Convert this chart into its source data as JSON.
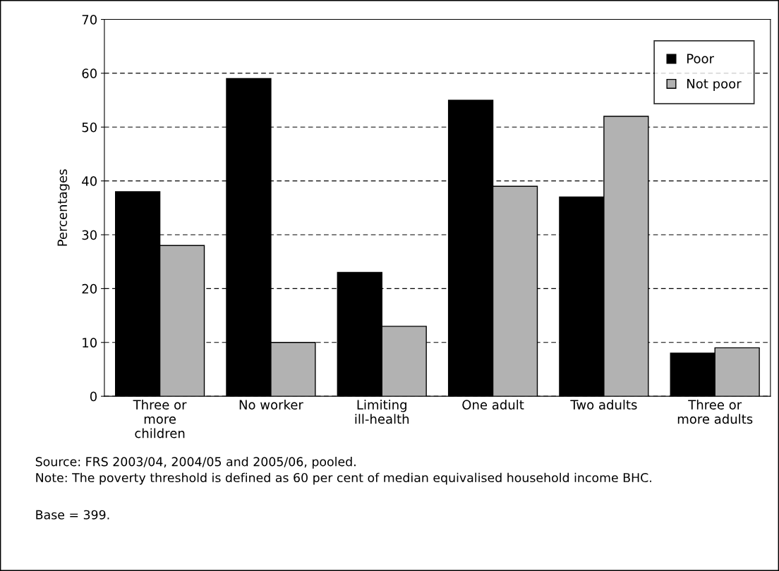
{
  "chart_data": {
    "type": "bar",
    "ylabel": "Percentages",
    "categories": [
      "Three or\nmore\nchildren",
      "No worker",
      "Limiting\nill-health",
      "One adult",
      "Two adults",
      "Three or\nmore adults"
    ],
    "series": [
      {
        "name": "Poor",
        "color": "#000000",
        "values": [
          38,
          59,
          23,
          55,
          37,
          8
        ]
      },
      {
        "name": "Not poor",
        "color": "#b2b2b2",
        "values": [
          28,
          10,
          13,
          39,
          52,
          9
        ]
      }
    ],
    "ylim": [
      0,
      70
    ],
    "yticks": [
      0,
      10,
      20,
      30,
      40,
      50,
      60,
      70
    ],
    "grid": "y",
    "legend": "top right",
    "annotations": [
      "Source: FRS 2003/04, 2004/05 and 2005/06, pooled.",
      "Note: The poverty threshold is defined as 60 per cent of median equivalised household income BHC.",
      "Base = 399."
    ]
  }
}
